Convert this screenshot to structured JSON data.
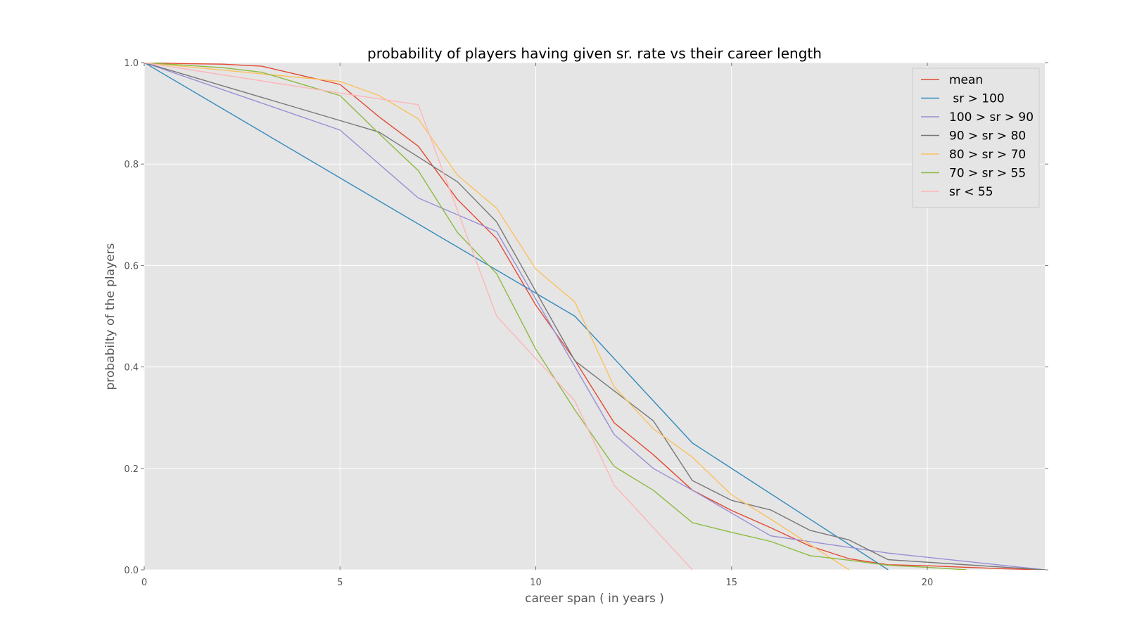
{
  "chart_data": {
    "type": "line",
    "title": "probability of players having given sr. rate vs their career length",
    "xlabel": "career span ( in years )",
    "ylabel": "probabilty of the players",
    "xlim": [
      0,
      23
    ],
    "ylim": [
      0,
      1.0
    ],
    "xticks": [
      0,
      5,
      10,
      15,
      20
    ],
    "xtick_labels": [
      "0",
      "5",
      "10",
      "15",
      "20"
    ],
    "yticks": [
      0,
      0.2,
      0.4,
      0.6,
      0.8,
      1.0
    ],
    "ytick_labels": [
      "0.0",
      "0.2",
      "0.4",
      "0.6",
      "0.8",
      "1.0"
    ],
    "grid": true,
    "legend_position": "top-right",
    "series": [
      {
        "name": "mean",
        "color": "#E24A33",
        "x": [
          0,
          1,
          2,
          3,
          4,
          5,
          6,
          7,
          8,
          9,
          10,
          11,
          12,
          13,
          14,
          15,
          16,
          17,
          18,
          19,
          20,
          21,
          22,
          23
        ],
        "values": [
          1.0,
          0.998,
          0.997,
          0.993,
          0.975,
          0.957,
          0.893,
          0.835,
          0.73,
          0.653,
          0.522,
          0.413,
          0.29,
          0.227,
          0.157,
          0.117,
          0.083,
          0.047,
          0.022,
          0.01,
          0.008,
          0.005,
          0.002,
          0.0
        ]
      },
      {
        "name": " sr > 100",
        "color": "#348ABD",
        "x": [
          0,
          11,
          14,
          19
        ],
        "values": [
          1.0,
          0.5,
          0.25,
          0.0
        ]
      },
      {
        "name": "100 > sr > 90",
        "color": "#988ED5",
        "x": [
          0,
          5,
          7,
          9,
          12,
          13,
          14,
          16,
          19,
          23
        ],
        "values": [
          1.0,
          0.867,
          0.733,
          0.667,
          0.267,
          0.2,
          0.157,
          0.067,
          0.033,
          0.0
        ]
      },
      {
        "name": "90 > sr > 80",
        "color": "#777777",
        "x": [
          0,
          6,
          8,
          9,
          11,
          13,
          14,
          15,
          16,
          17,
          18,
          19,
          23
        ],
        "values": [
          1.0,
          0.863,
          0.765,
          0.686,
          0.412,
          0.294,
          0.176,
          0.137,
          0.118,
          0.078,
          0.059,
          0.02,
          0.0
        ]
      },
      {
        "name": "80 > sr > 70",
        "color": "#FBC15E",
        "x": [
          0,
          5,
          6,
          7,
          8,
          9,
          10,
          11,
          12,
          13,
          14,
          15,
          16,
          17,
          18
        ],
        "values": [
          1.0,
          0.963,
          0.935,
          0.889,
          0.778,
          0.713,
          0.593,
          0.528,
          0.361,
          0.278,
          0.222,
          0.148,
          0.1,
          0.05,
          0.0
        ]
      },
      {
        "name": "70 > sr > 55",
        "color": "#8EBA42",
        "x": [
          0,
          1,
          2,
          3,
          4,
          5,
          6,
          7,
          8,
          9,
          10,
          11,
          12,
          13,
          14,
          15,
          16,
          17,
          18,
          19,
          20,
          21
        ],
        "values": [
          1.0,
          0.995,
          0.99,
          0.981,
          0.958,
          0.935,
          0.86,
          0.787,
          0.665,
          0.584,
          0.435,
          0.315,
          0.204,
          0.157,
          0.093,
          0.074,
          0.056,
          0.028,
          0.019,
          0.009,
          0.005,
          0.0
        ]
      },
      {
        "name": "sr < 55",
        "color": "#FFB5B8",
        "x": [
          0,
          5,
          7,
          9,
          11,
          12,
          14
        ],
        "values": [
          1.0,
          0.94,
          0.917,
          0.5,
          0.333,
          0.167,
          0.0
        ]
      }
    ]
  }
}
